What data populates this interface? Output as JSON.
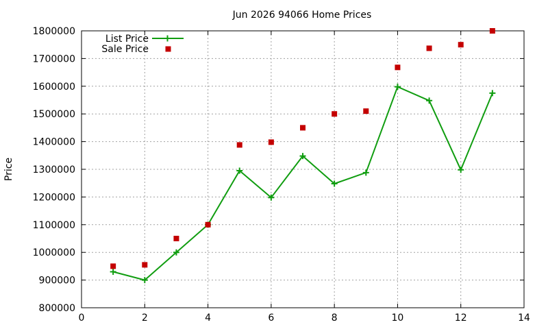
{
  "chart_data": {
    "type": "line",
    "title": "Jun 2026 94066 Home Prices",
    "xlabel": "",
    "ylabel": "Price",
    "xlim": [
      0,
      14
    ],
    "ylim": [
      800000,
      1800000
    ],
    "x_ticks": [
      0,
      2,
      4,
      6,
      8,
      10,
      12,
      14
    ],
    "y_ticks": [
      800000,
      900000,
      1000000,
      1100000,
      1200000,
      1300000,
      1400000,
      1500000,
      1600000,
      1700000,
      1800000
    ],
    "grid": true,
    "legend_position": "top-left",
    "x": [
      1,
      2,
      3,
      4,
      5,
      6,
      7,
      8,
      9,
      10,
      11,
      12,
      13
    ],
    "series": [
      {
        "name": "List Price",
        "style": "line-with-plus-markers",
        "color": "#109d10",
        "values": [
          930000,
          900000,
          1000000,
          1100000,
          1295000,
          1198000,
          1348000,
          1248000,
          1288000,
          1598000,
          1548000,
          1298000,
          1575000
        ]
      },
      {
        "name": "Sale Price",
        "style": "square-markers",
        "color": "#c40000",
        "values": [
          950000,
          955000,
          1050000,
          1100000,
          1388000,
          1398000,
          1450000,
          1500000,
          1510000,
          1668000,
          1737000,
          1750000,
          1800000
        ]
      }
    ]
  }
}
